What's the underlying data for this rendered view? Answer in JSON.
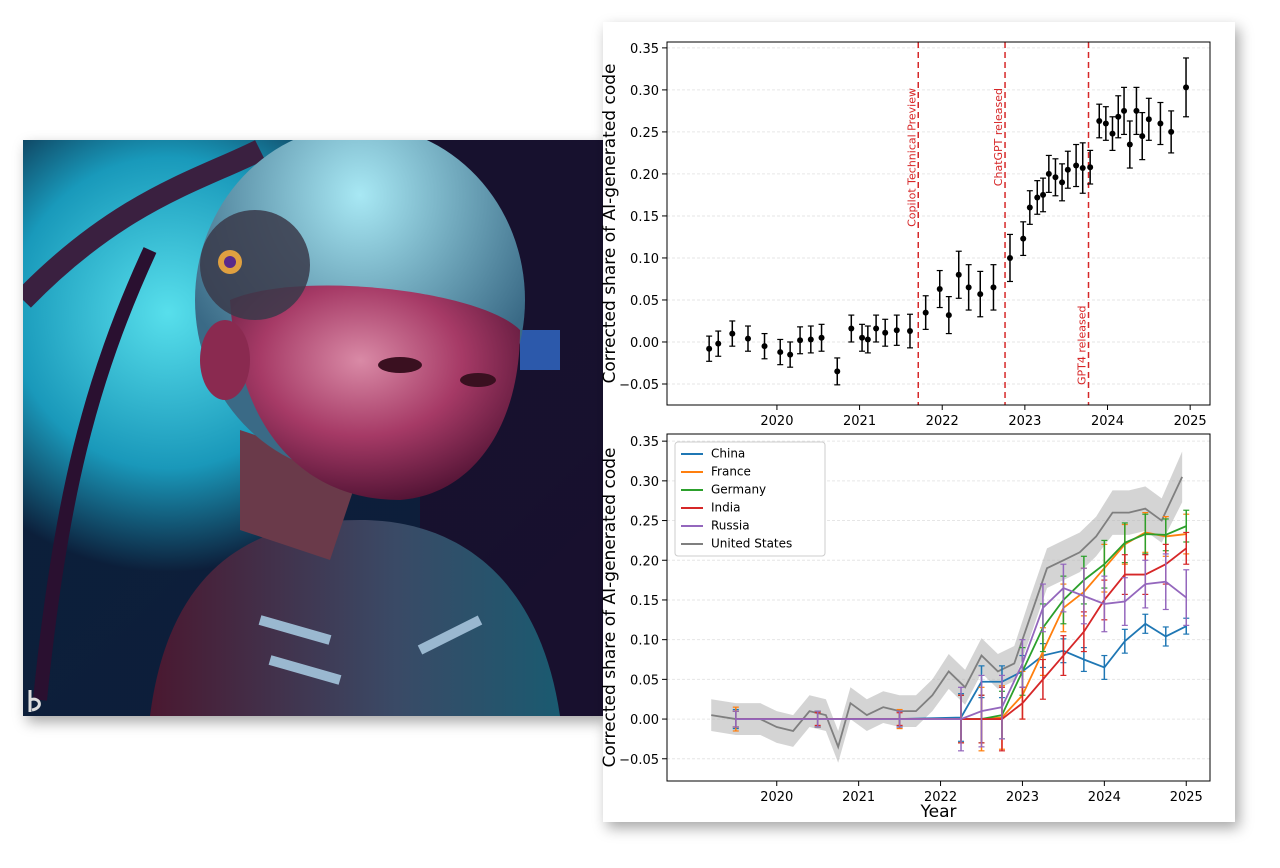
{
  "chart_data": [
    {
      "type": "scatter",
      "ylabel": "Corrected share of AI-generated code",
      "xlim": [
        2018.67,
        2025.24
      ],
      "ylim": [
        -0.075,
        0.357
      ],
      "xticks": [
        2020,
        2021,
        2022,
        2023,
        2024,
        2025
      ],
      "yticks": [
        {
          "value": -0.05,
          "label": "−0.05"
        },
        {
          "value": 0,
          "label": "0.00"
        },
        0.05,
        {
          "value": 0.1,
          "label": "0.10"
        },
        0.15,
        {
          "value": 0.2,
          "label": "0.20"
        },
        0.25,
        {
          "value": 0.3,
          "label": "0.30"
        },
        0.35
      ],
      "grid": true,
      "color": "#000000",
      "x": [
        2019.18,
        2019.29,
        2019.46,
        2019.65,
        2019.85,
        2020.04,
        2020.16,
        2020.28,
        2020.41,
        2020.54,
        2020.73,
        2020.9,
        2021.03,
        2021.1,
        2021.2,
        2021.31,
        2021.45,
        2021.61,
        2021.8,
        2021.97,
        2022.08,
        2022.2,
        2022.32,
        2022.46,
        2022.62,
        2022.82,
        2022.98,
        2023.06,
        2023.15,
        2023.22,
        2023.29,
        2023.37,
        2023.45,
        2023.52,
        2023.62,
        2023.7,
        2023.79,
        2023.9,
        2023.98,
        2024.06,
        2024.13,
        2024.2,
        2024.27,
        2024.35,
        2024.42,
        2024.5,
        2024.64,
        2024.77,
        2024.95
      ],
      "values": [
        -0.008,
        -0.002,
        0.01,
        0.004,
        -0.005,
        -0.012,
        -0.015,
        0.002,
        0.003,
        0.005,
        -0.035,
        0.016,
        0.005,
        0.003,
        0.016,
        0.011,
        0.014,
        0.013,
        0.035,
        0.063,
        0.032,
        0.08,
        0.065,
        0.057,
        0.065,
        0.1,
        0.123,
        0.16,
        0.172,
        0.175,
        0.2,
        0.196,
        0.19,
        0.205,
        0.21,
        0.207,
        0.208,
        0.263,
        0.26,
        0.248,
        0.268,
        0.275,
        0.235,
        0.275,
        0.245,
        0.265,
        0.26,
        0.25,
        0.303
      ],
      "errors": [
        0.015,
        0.015,
        0.015,
        0.015,
        0.015,
        0.015,
        0.015,
        0.016,
        0.016,
        0.016,
        0.016,
        0.016,
        0.016,
        0.016,
        0.016,
        0.016,
        0.018,
        0.02,
        0.02,
        0.022,
        0.022,
        0.028,
        0.027,
        0.027,
        0.027,
        0.028,
        0.02,
        0.02,
        0.02,
        0.02,
        0.022,
        0.022,
        0.022,
        0.022,
        0.025,
        0.03,
        0.02,
        0.02,
        0.02,
        0.02,
        0.025,
        0.028,
        0.028,
        0.028,
        0.028,
        0.025,
        0.025,
        0.025,
        0.035
      ],
      "annotations": [
        {
          "text": "Copilot Technical Preview",
          "x": 2021.71,
          "anchor": "top"
        },
        {
          "text": "ChatGPT released",
          "x": 2022.76,
          "anchor": "top"
        },
        {
          "text": "GPT4 released",
          "x": 2023.77,
          "anchor": "bottom"
        }
      ],
      "annotation_color": "#d62728"
    },
    {
      "type": "line",
      "ylabel": "Corrected share of AI-generated code",
      "xlabel": "Year",
      "xlim": [
        2018.66,
        2025.29
      ],
      "ylim": [
        -0.078,
        0.359
      ],
      "xticks": [
        2020,
        2021,
        2022,
        2023,
        2024,
        2025
      ],
      "yticks": [
        {
          "value": -0.05,
          "label": "−0.05"
        },
        {
          "value": 0,
          "label": "0.00"
        },
        0.05,
        {
          "value": 0.1,
          "label": "0.10"
        },
        0.15,
        {
          "value": 0.2,
          "label": "0.20"
        },
        0.25,
        {
          "value": 0.3,
          "label": "0.30"
        },
        0.35
      ],
      "grid": true,
      "legend": "upper left",
      "series": [
        {
          "name": "China",
          "color": "#1f77b4",
          "x": [
            2019.5,
            2020.5,
            2021.5,
            2022.25,
            2022.5,
            2022.75,
            2023,
            2023.25,
            2023.5,
            2023.75,
            2024,
            2024.25,
            2024.5,
            2024.75,
            2025
          ],
          "values": [
            0,
            0,
            0,
            0.002,
            0.047,
            0.047,
            0.06,
            0.08,
            0.086,
            0.075,
            0.065,
            0.098,
            0.12,
            0.104,
            0.117
          ],
          "errors": [
            0.012,
            0.01,
            0.01,
            0.03,
            0.02,
            0.02,
            0.02,
            0.015,
            0.015,
            0.015,
            0.015,
            0.015,
            0.012,
            0.012,
            0.01
          ]
        },
        {
          "name": "France",
          "color": "#ff7f0e",
          "x": [
            2019.5,
            2020.5,
            2021.5,
            2022.25,
            2022.5,
            2022.75,
            2023,
            2023.25,
            2023.5,
            2023.75,
            2024,
            2024.25,
            2024.5,
            2024.75,
            2025
          ],
          "values": [
            0,
            0,
            0,
            0,
            0,
            0.002,
            0.03,
            0.085,
            0.14,
            0.16,
            0.19,
            0.22,
            0.235,
            0.23,
            0.233
          ],
          "errors": [
            0.015,
            0.01,
            0.012,
            0.03,
            0.04,
            0.04,
            0.03,
            0.03,
            0.03,
            0.03,
            0.03,
            0.025,
            0.025,
            0.025,
            0.025
          ]
        },
        {
          "name": "Germany",
          "color": "#2ca02c",
          "x": [
            2019.5,
            2020.5,
            2021.5,
            2022.25,
            2022.5,
            2022.75,
            2023,
            2023.25,
            2023.5,
            2023.75,
            2024,
            2024.25,
            2024.5,
            2024.75,
            2025
          ],
          "values": [
            0,
            0,
            0,
            0,
            0,
            0.005,
            0.06,
            0.115,
            0.15,
            0.175,
            0.195,
            0.222,
            0.233,
            0.232,
            0.243
          ],
          "errors": [
            0.01,
            0.01,
            0.01,
            0.03,
            0.03,
            0.03,
            0.03,
            0.03,
            0.03,
            0.03,
            0.03,
            0.025,
            0.025,
            0.02,
            0.02
          ]
        },
        {
          "name": "India",
          "color": "#d62728",
          "x": [
            2019.5,
            2020.5,
            2021.5,
            2022.25,
            2022.5,
            2022.75,
            2023,
            2023.25,
            2023.5,
            2023.75,
            2024,
            2024.25,
            2024.5,
            2024.75,
            2025
          ],
          "values": [
            0,
            0,
            0,
            0,
            0,
            0,
            0.02,
            0.05,
            0.08,
            0.11,
            0.15,
            0.182,
            0.182,
            0.195,
            0.215
          ],
          "errors": [
            0.01,
            0.008,
            0.008,
            0.03,
            0.03,
            0.04,
            0.02,
            0.025,
            0.025,
            0.025,
            0.025,
            0.025,
            0.025,
            0.025,
            0.02
          ]
        },
        {
          "name": "Russia",
          "color": "#9467bd",
          "x": [
            2019.5,
            2020.5,
            2021.5,
            2022.25,
            2022.5,
            2022.75,
            2023,
            2023.25,
            2023.5,
            2023.75,
            2024,
            2024.25,
            2024.5,
            2024.75,
            2025
          ],
          "values": [
            0,
            0,
            0,
            0,
            0.01,
            0.015,
            0.07,
            0.14,
            0.165,
            0.155,
            0.145,
            0.148,
            0.17,
            0.173,
            0.153
          ],
          "errors": [
            0.01,
            0.01,
            0.01,
            0.04,
            0.045,
            0.04,
            0.03,
            0.03,
            0.03,
            0.035,
            0.035,
            0.03,
            0.03,
            0.035,
            0.035
          ]
        },
        {
          "name": "United States",
          "color": "#7f7f7f",
          "error_style": "band",
          "x": [
            2019.2,
            2019.5,
            2019.8,
            2020.0,
            2020.2,
            2020.4,
            2020.6,
            2020.75,
            2020.9,
            2021.1,
            2021.3,
            2021.5,
            2021.7,
            2021.9,
            2022.1,
            2022.3,
            2022.5,
            2022.7,
            2022.9,
            2023.1,
            2023.3,
            2023.5,
            2023.7,
            2023.9,
            2024.1,
            2024.3,
            2024.5,
            2024.7,
            2024.95
          ],
          "values": [
            0.005,
            0,
            0,
            -0.01,
            -0.015,
            0.01,
            0.005,
            -0.035,
            0.02,
            0.005,
            0.015,
            0.01,
            0.01,
            0.03,
            0.06,
            0.04,
            0.08,
            0.06,
            0.07,
            0.13,
            0.19,
            0.2,
            0.21,
            0.23,
            0.26,
            0.26,
            0.265,
            0.25,
            0.305
          ],
          "errors": [
            0.02,
            0.02,
            0.02,
            0.02,
            0.02,
            0.02,
            0.02,
            0.02,
            0.02,
            0.02,
            0.02,
            0.02,
            0.02,
            0.02,
            0.022,
            0.022,
            0.022,
            0.022,
            0.022,
            0.025,
            0.025,
            0.025,
            0.025,
            0.025,
            0.028,
            0.028,
            0.028,
            0.028,
            0.032
          ]
        }
      ]
    }
  ]
}
